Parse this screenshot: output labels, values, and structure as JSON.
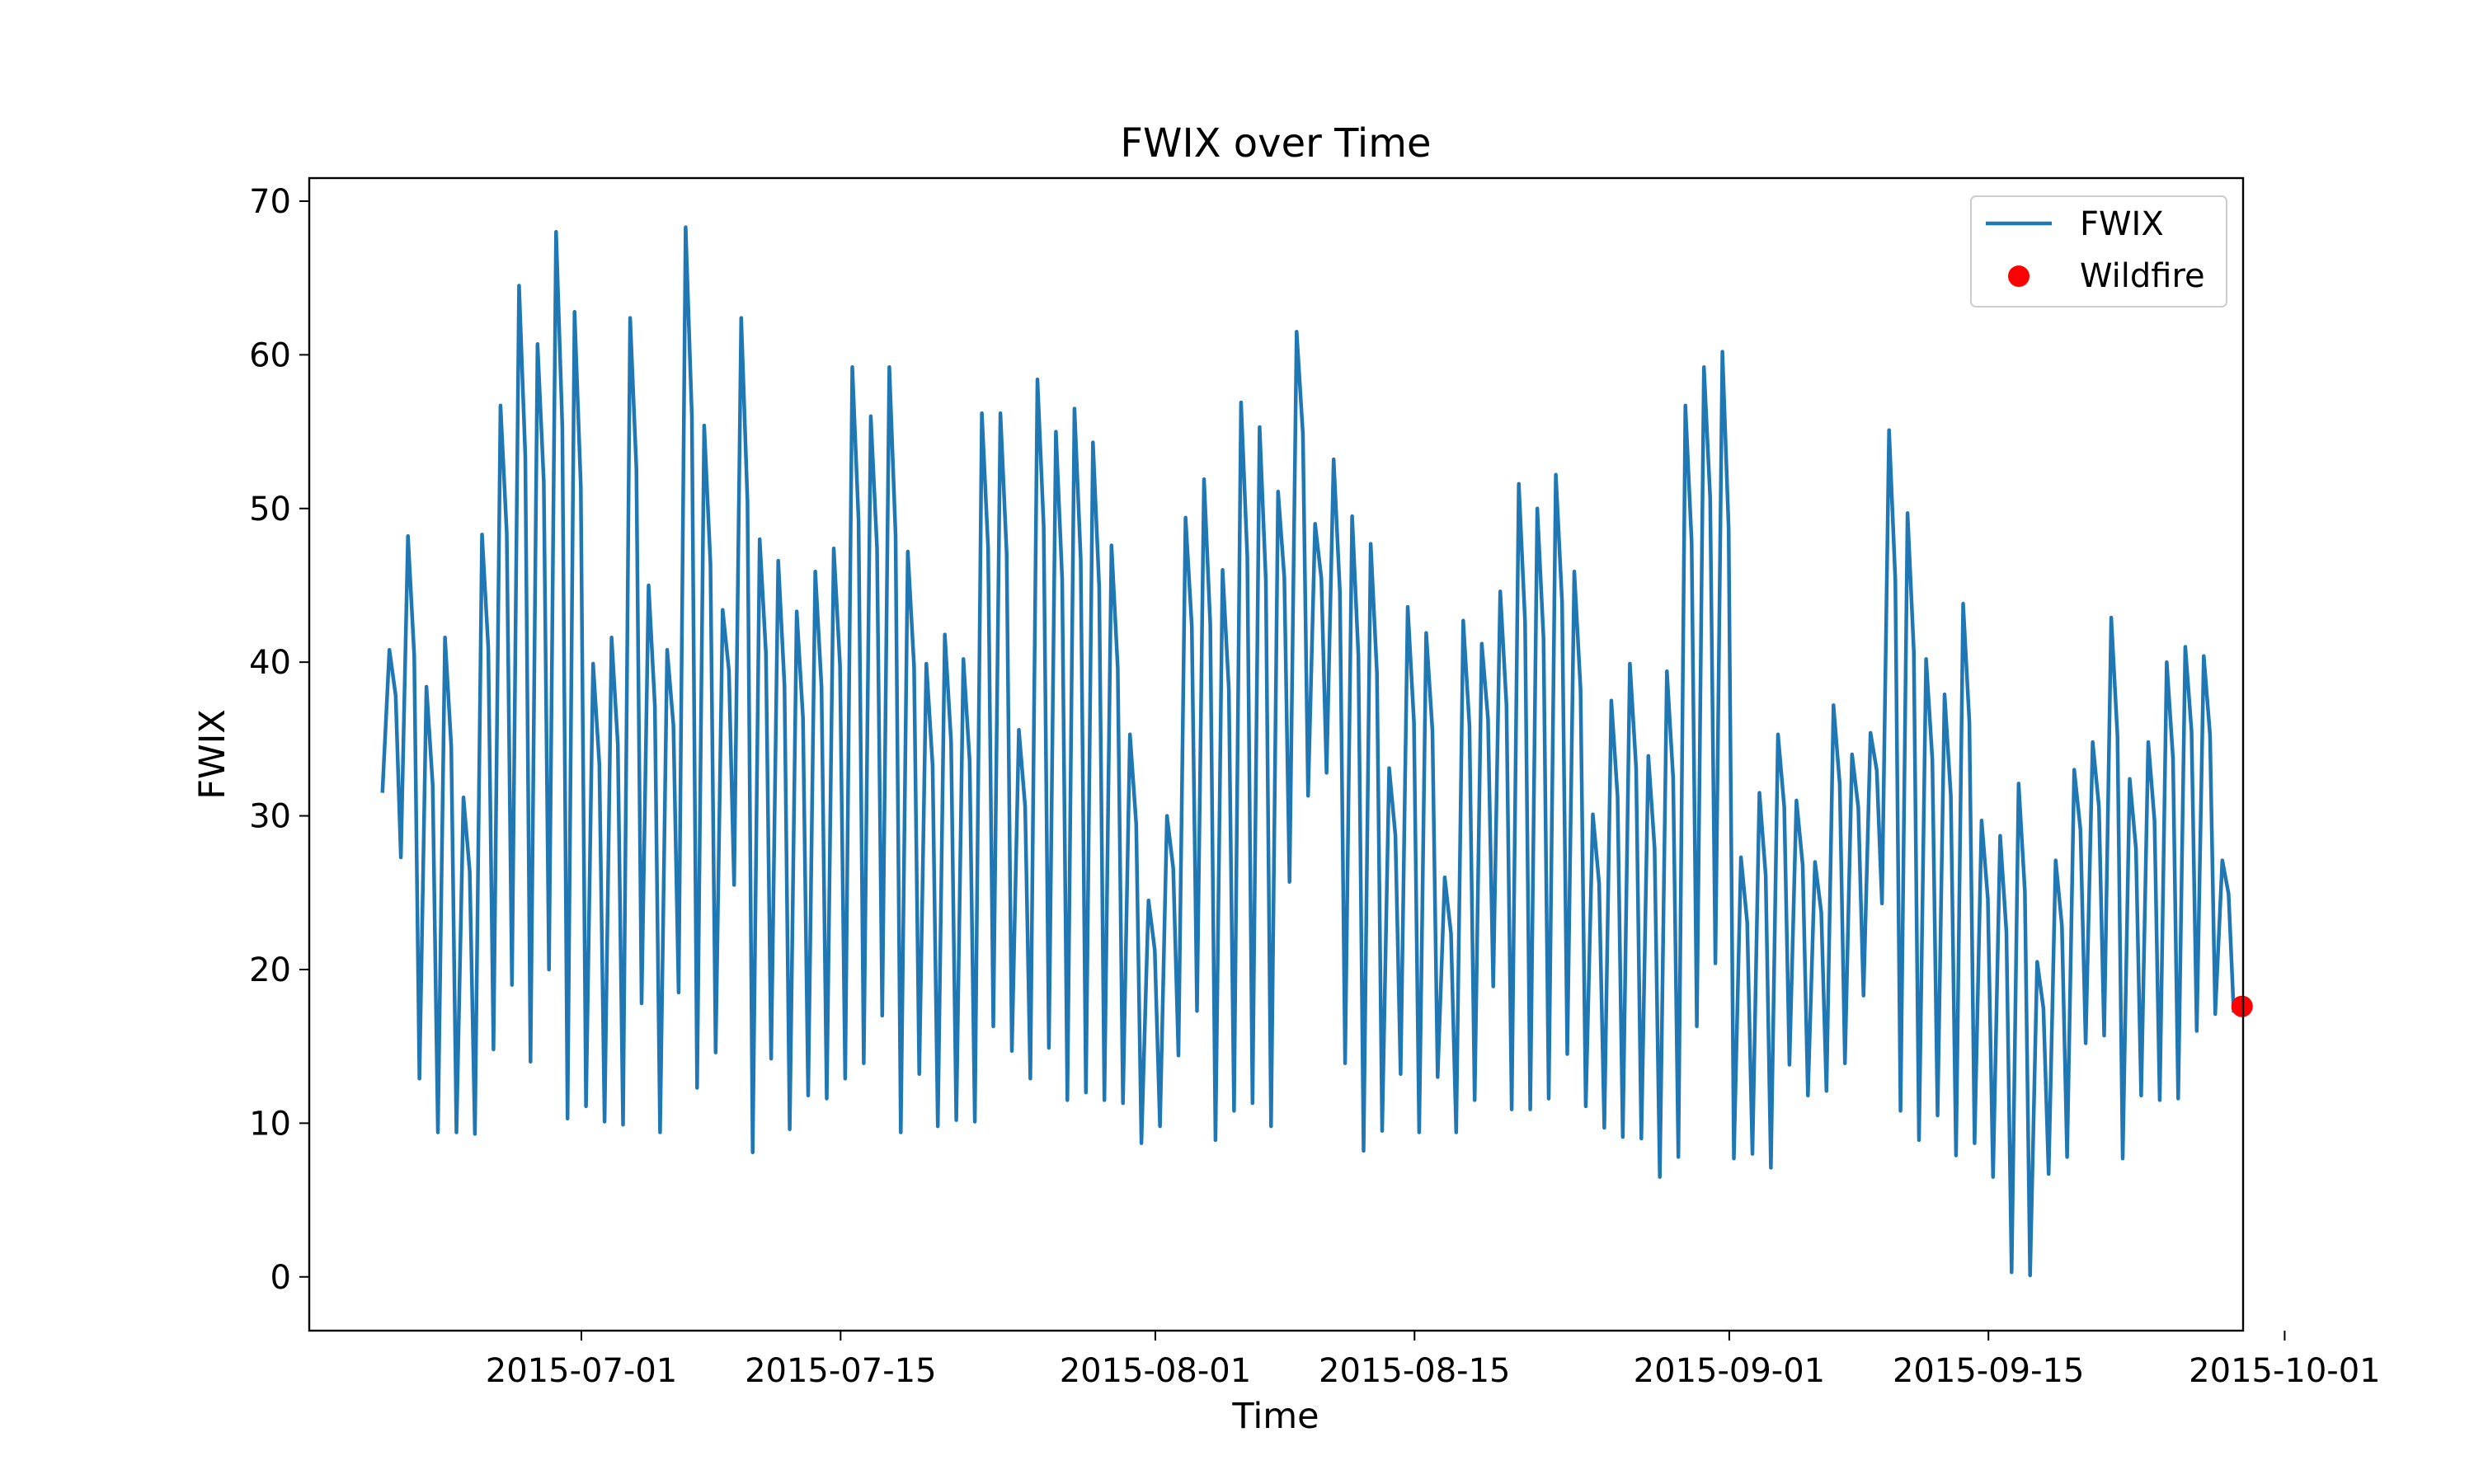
{
  "chart_data": {
    "type": "line",
    "title": "FWIX over Time",
    "xlabel": "Time",
    "ylabel": "FWIX",
    "x_range": [
      "2015-06-19",
      "2015-10-01"
    ],
    "ylim": [
      -3.5,
      71.5
    ],
    "y_ticks": [
      0,
      10,
      20,
      30,
      40,
      50,
      60,
      70
    ],
    "x_ticks": [
      "2015-07-01",
      "2015-07-15",
      "2015-08-01",
      "2015-08-15",
      "2015-09-01",
      "2015-09-15",
      "2015-10-01"
    ],
    "x_tick_days": [
      11.5,
      25.5,
      42.5,
      56.5,
      73.5,
      87.5,
      103.5
    ],
    "grid": false,
    "legend": {
      "position": "top-right",
      "entries": [
        "FWIX",
        "Wildfire"
      ]
    },
    "series": [
      {
        "name": "FWIX",
        "color": "#1f77b4",
        "kind": "line",
        "start_day": 0.75,
        "values_daily_peak_trough": [
          [
            40.8,
            27.3
          ],
          [
            48.2,
            12.9
          ],
          [
            38.4,
            9.4
          ],
          [
            41.6,
            9.4
          ],
          [
            31.2,
            9.3
          ],
          [
            48.3,
            14.8
          ],
          [
            56.7,
            19.0
          ],
          [
            64.5,
            14.0
          ],
          [
            60.7,
            20.0
          ],
          [
            68.0,
            10.3
          ],
          [
            62.8,
            11.1
          ],
          [
            39.9,
            10.1
          ],
          [
            41.6,
            9.9
          ],
          [
            62.4,
            17.8
          ],
          [
            45.0,
            9.4
          ],
          [
            40.8,
            18.5
          ],
          [
            68.3,
            12.3
          ],
          [
            55.4,
            14.6
          ],
          [
            43.4,
            25.5
          ],
          [
            62.4,
            8.1
          ],
          [
            48.0,
            14.2
          ],
          [
            46.6,
            9.6
          ],
          [
            43.3,
            11.8
          ],
          [
            45.9,
            11.6
          ],
          [
            47.4,
            12.9
          ],
          [
            59.2,
            13.9
          ],
          [
            56.0,
            17.0
          ],
          [
            59.2,
            9.4
          ],
          [
            47.2,
            13.2
          ],
          [
            39.9,
            9.8
          ],
          [
            41.8,
            10.2
          ],
          [
            40.2,
            10.1
          ],
          [
            56.2,
            16.3
          ],
          [
            56.2,
            14.7
          ],
          [
            35.6,
            12.9
          ],
          [
            58.4,
            14.9
          ],
          [
            55.0,
            11.5
          ],
          [
            56.5,
            12.0
          ],
          [
            54.3,
            11.5
          ],
          [
            47.6,
            11.3
          ],
          [
            35.3,
            8.7
          ],
          [
            24.5,
            9.8
          ],
          [
            30.0,
            14.4
          ],
          [
            49.4,
            17.3
          ],
          [
            51.9,
            8.9
          ],
          [
            46.0,
            10.8
          ],
          [
            56.9,
            11.3
          ],
          [
            55.3,
            9.8
          ],
          [
            51.1,
            25.7
          ],
          [
            61.5,
            31.3
          ],
          [
            49.0,
            32.8
          ],
          [
            53.2,
            13.9
          ],
          [
            49.5,
            8.2
          ],
          [
            47.7,
            9.5
          ],
          [
            33.1,
            13.2
          ],
          [
            43.6,
            9.4
          ],
          [
            41.9,
            13.0
          ],
          [
            26.0,
            9.4
          ],
          [
            42.7,
            11.5
          ],
          [
            41.2,
            18.9
          ],
          [
            44.6,
            10.9
          ],
          [
            51.6,
            10.9
          ],
          [
            50.0,
            11.6
          ],
          [
            52.2,
            14.5
          ],
          [
            45.9,
            11.1
          ],
          [
            30.1,
            9.7
          ],
          [
            37.5,
            9.1
          ],
          [
            39.9,
            9.0
          ],
          [
            33.9,
            6.5
          ],
          [
            39.4,
            7.8
          ],
          [
            56.7,
            16.3
          ],
          [
            59.2,
            20.4
          ],
          [
            60.2,
            7.7
          ],
          [
            27.3,
            8.0
          ],
          [
            31.5,
            7.1
          ],
          [
            35.3,
            13.8
          ],
          [
            31.0,
            11.8
          ],
          [
            27.0,
            12.1
          ],
          [
            37.2,
            13.9
          ],
          [
            34.0,
            18.3
          ],
          [
            35.4,
            24.3
          ],
          [
            55.1,
            10.8
          ],
          [
            49.7,
            8.9
          ],
          [
            40.2,
            10.5
          ],
          [
            37.9,
            7.9
          ],
          [
            43.8,
            8.7
          ],
          [
            29.7,
            6.5
          ],
          [
            28.7,
            0.3
          ],
          [
            32.1,
            0.1
          ],
          [
            20.5,
            6.7
          ],
          [
            27.1,
            7.8
          ],
          [
            33.0,
            15.2
          ],
          [
            34.8,
            15.7
          ],
          [
            42.9,
            7.7
          ],
          [
            32.4,
            11.8
          ],
          [
            34.8,
            11.5
          ],
          [
            40.0,
            11.6
          ],
          [
            41.0,
            16.0
          ],
          [
            40.4,
            17.1
          ],
          [
            27.1,
            17.2
          ]
        ]
      },
      {
        "name": "Wildfire",
        "color": "#ff0000",
        "kind": "marker",
        "points": [
          {
            "day": 101.2,
            "value": 17.6
          }
        ]
      }
    ]
  }
}
